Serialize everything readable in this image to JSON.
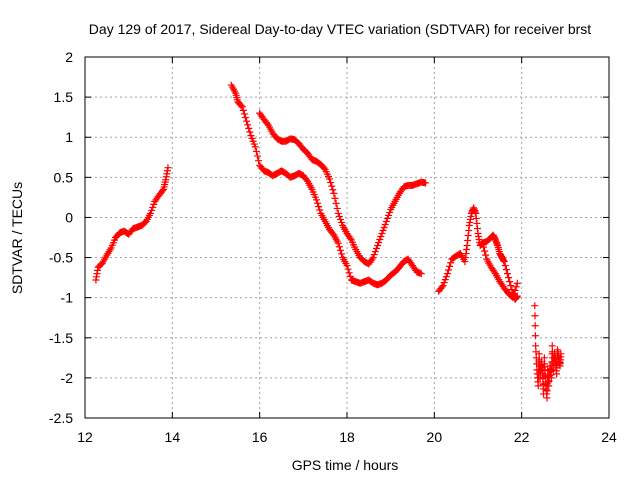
{
  "chart_data": {
    "type": "scatter",
    "title": "Day 129 of 2017, Sidereal Day-to-day VTEC variation (SDTVAR) for receiver brst",
    "xlabel": "GPS time / hours",
    "ylabel": "SDTVAR / TECUs",
    "xlim": [
      12,
      24
    ],
    "ylim": [
      -2.5,
      2
    ],
    "xticks": [
      12,
      14,
      16,
      18,
      20,
      22,
      24
    ],
    "yticks": [
      2,
      1.5,
      1,
      0.5,
      0,
      -0.5,
      -1,
      -1.5,
      -2,
      -2.5
    ],
    "grid": true,
    "marker": "+",
    "color": "#ff0000",
    "segments": [
      [
        [
          12.25,
          -0.78
        ],
        [
          12.3,
          -0.62
        ],
        [
          12.4,
          -0.57
        ],
        [
          12.5,
          -0.47
        ],
        [
          12.6,
          -0.38
        ],
        [
          12.7,
          -0.25
        ],
        [
          12.8,
          -0.19
        ],
        [
          12.9,
          -0.17
        ],
        [
          13.0,
          -0.21
        ],
        [
          13.1,
          -0.14
        ],
        [
          13.2,
          -0.12
        ],
        [
          13.3,
          -0.1
        ],
        [
          13.4,
          -0.05
        ],
        [
          13.5,
          0.05
        ],
        [
          13.6,
          0.2
        ],
        [
          13.7,
          0.28
        ],
        [
          13.8,
          0.35
        ],
        [
          13.85,
          0.47
        ],
        [
          13.9,
          0.62
        ]
      ],
      [
        [
          15.35,
          1.65
        ],
        [
          15.45,
          1.55
        ],
        [
          15.5,
          1.44
        ],
        [
          15.6,
          1.38
        ],
        [
          15.7,
          1.2
        ],
        [
          15.8,
          1.02
        ],
        [
          15.9,
          0.88
        ],
        [
          16.0,
          0.65
        ],
        [
          16.1,
          0.58
        ],
        [
          16.2,
          0.56
        ],
        [
          16.3,
          0.52
        ],
        [
          16.4,
          0.55
        ],
        [
          16.5,
          0.58
        ],
        [
          16.6,
          0.55
        ],
        [
          16.7,
          0.5
        ],
        [
          16.8,
          0.52
        ],
        [
          16.9,
          0.55
        ],
        [
          17.0,
          0.52
        ],
        [
          17.1,
          0.45
        ],
        [
          17.2,
          0.35
        ],
        [
          17.3,
          0.22
        ],
        [
          17.4,
          0.05
        ],
        [
          17.5,
          -0.05
        ],
        [
          17.6,
          -0.15
        ],
        [
          17.7,
          -0.22
        ],
        [
          17.8,
          -0.32
        ],
        [
          17.9,
          -0.5
        ],
        [
          18.0,
          -0.6
        ],
        [
          18.1,
          -0.78
        ],
        [
          18.2,
          -0.8
        ],
        [
          18.3,
          -0.82
        ],
        [
          18.4,
          -0.8
        ],
        [
          18.5,
          -0.78
        ],
        [
          18.6,
          -0.82
        ],
        [
          18.7,
          -0.84
        ],
        [
          18.8,
          -0.82
        ],
        [
          18.9,
          -0.78
        ],
        [
          19.0,
          -0.72
        ],
        [
          19.1,
          -0.68
        ],
        [
          19.2,
          -0.62
        ],
        [
          19.3,
          -0.55
        ],
        [
          19.4,
          -0.52
        ],
        [
          19.5,
          -0.6
        ],
        [
          19.6,
          -0.68
        ],
        [
          19.7,
          -0.7
        ]
      ],
      [
        [
          16.0,
          1.3
        ],
        [
          16.1,
          1.22
        ],
        [
          16.2,
          1.15
        ],
        [
          16.3,
          1.05
        ],
        [
          16.4,
          0.98
        ],
        [
          16.5,
          0.95
        ],
        [
          16.6,
          0.95
        ],
        [
          16.7,
          0.98
        ],
        [
          16.8,
          0.97
        ],
        [
          16.9,
          0.92
        ],
        [
          17.0,
          0.85
        ],
        [
          17.1,
          0.8
        ],
        [
          17.2,
          0.72
        ],
        [
          17.3,
          0.7
        ],
        [
          17.4,
          0.66
        ],
        [
          17.5,
          0.6
        ],
        [
          17.6,
          0.48
        ],
        [
          17.7,
          0.3
        ],
        [
          17.8,
          0.05
        ],
        [
          17.9,
          -0.1
        ],
        [
          18.0,
          -0.2
        ],
        [
          18.1,
          -0.28
        ],
        [
          18.2,
          -0.4
        ],
        [
          18.3,
          -0.5
        ],
        [
          18.4,
          -0.55
        ],
        [
          18.5,
          -0.58
        ],
        [
          18.6,
          -0.5
        ],
        [
          18.7,
          -0.35
        ],
        [
          18.8,
          -0.2
        ],
        [
          18.9,
          -0.05
        ],
        [
          19.0,
          0.1
        ],
        [
          19.1,
          0.2
        ],
        [
          19.2,
          0.3
        ],
        [
          19.3,
          0.38
        ],
        [
          19.4,
          0.4
        ],
        [
          19.5,
          0.4
        ],
        [
          19.6,
          0.42
        ],
        [
          19.7,
          0.44
        ],
        [
          19.8,
          0.43
        ]
      ],
      [
        [
          20.1,
          -0.92
        ],
        [
          20.2,
          -0.85
        ],
        [
          20.3,
          -0.7
        ],
        [
          20.4,
          -0.52
        ],
        [
          20.5,
          -0.48
        ],
        [
          20.6,
          -0.45
        ],
        [
          20.7,
          -0.55
        ],
        [
          20.75,
          -0.35
        ],
        [
          20.8,
          -0.1
        ],
        [
          20.85,
          0.05
        ],
        [
          20.9,
          0.12
        ],
        [
          20.95,
          0.05
        ],
        [
          21.0,
          -0.2
        ],
        [
          21.05,
          -0.35
        ],
        [
          21.1,
          -0.32
        ],
        [
          21.2,
          -0.3
        ],
        [
          21.3,
          -0.25
        ],
        [
          21.35,
          -0.22
        ],
        [
          21.4,
          -0.28
        ],
        [
          21.45,
          -0.35
        ],
        [
          21.5,
          -0.45
        ],
        [
          21.55,
          -0.5
        ],
        [
          21.6,
          -0.55
        ],
        [
          21.7,
          -0.75
        ],
        [
          21.8,
          -0.95
        ],
        [
          21.85,
          -1.02
        ],
        [
          21.9,
          -0.98
        ]
      ],
      [
        [
          21.1,
          -0.32
        ],
        [
          21.2,
          -0.52
        ],
        [
          21.3,
          -0.62
        ],
        [
          21.4,
          -0.7
        ],
        [
          21.5,
          -0.8
        ],
        [
          21.6,
          -0.88
        ],
        [
          21.7,
          -0.95
        ],
        [
          21.8,
          -1.0
        ],
        [
          21.9,
          -0.82
        ]
      ],
      [
        [
          22.3,
          -1.1
        ],
        [
          22.32,
          -1.6
        ],
        [
          22.35,
          -1.9
        ],
        [
          22.38,
          -2.1
        ],
        [
          22.4,
          -1.7
        ],
        [
          22.42,
          -2.0
        ],
        [
          22.45,
          -1.8
        ],
        [
          22.48,
          -1.95
        ],
        [
          22.5,
          -2.2
        ],
        [
          22.52,
          -1.75
        ],
        [
          22.55,
          -2.05
        ],
        [
          22.58,
          -2.25
        ],
        [
          22.6,
          -1.9
        ],
        [
          22.62,
          -2.1
        ],
        [
          22.65,
          -1.85
        ],
        [
          22.68,
          -2.0
        ],
        [
          22.7,
          -1.6
        ],
        [
          22.72,
          -1.9
        ],
        [
          22.75,
          -1.7
        ],
        [
          22.78,
          -1.8
        ],
        [
          22.8,
          -1.95
        ],
        [
          22.82,
          -1.65
        ],
        [
          22.85,
          -1.75
        ],
        [
          22.88,
          -1.85
        ],
        [
          22.9,
          -1.7
        ]
      ]
    ]
  }
}
